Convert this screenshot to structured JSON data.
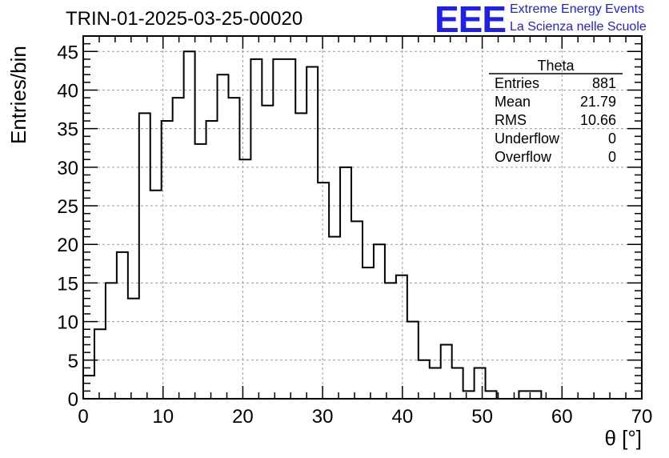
{
  "header": {
    "title": "TRIN-01-2025-03-25-00020",
    "logo_text": "EEE",
    "logo_line1": "Extreme Energy Events",
    "logo_line2": "La Scienza nelle Scuole"
  },
  "stats": {
    "name": "Theta",
    "rows": [
      {
        "label": "Entries",
        "value": "881"
      },
      {
        "label": "Mean",
        "value": "21.79"
      },
      {
        "label": "RMS",
        "value": "10.66"
      },
      {
        "label": "Underflow",
        "value": "0"
      },
      {
        "label": "Overflow",
        "value": "0"
      }
    ]
  },
  "chart_data": {
    "type": "histogram",
    "title": "TRIN-01-2025-03-25-00020",
    "xlabel": "θ [°]",
    "ylabel": "Entries/bin",
    "xlim": [
      0,
      70
    ],
    "ylim": [
      0,
      47
    ],
    "bin_width": 1.4,
    "bin_start": 0,
    "values": [
      3,
      9,
      15,
      19,
      13,
      37,
      27,
      36,
      39,
      45,
      33,
      36,
      42,
      39,
      31,
      44,
      38,
      44,
      44,
      37,
      43,
      28,
      21,
      30,
      23,
      17,
      20,
      15,
      16,
      10,
      5,
      4,
      7,
      4,
      1,
      4,
      1,
      0,
      0,
      1,
      1,
      0,
      0,
      0,
      0,
      0,
      0,
      0,
      0,
      0
    ],
    "x_ticks": [
      0,
      10,
      20,
      30,
      40,
      50,
      60,
      70
    ],
    "y_ticks": [
      0,
      5,
      10,
      15,
      20,
      25,
      30,
      35,
      40,
      45
    ],
    "grid": true,
    "line_color": "#000000",
    "grid_color": "#9a9a9a"
  }
}
